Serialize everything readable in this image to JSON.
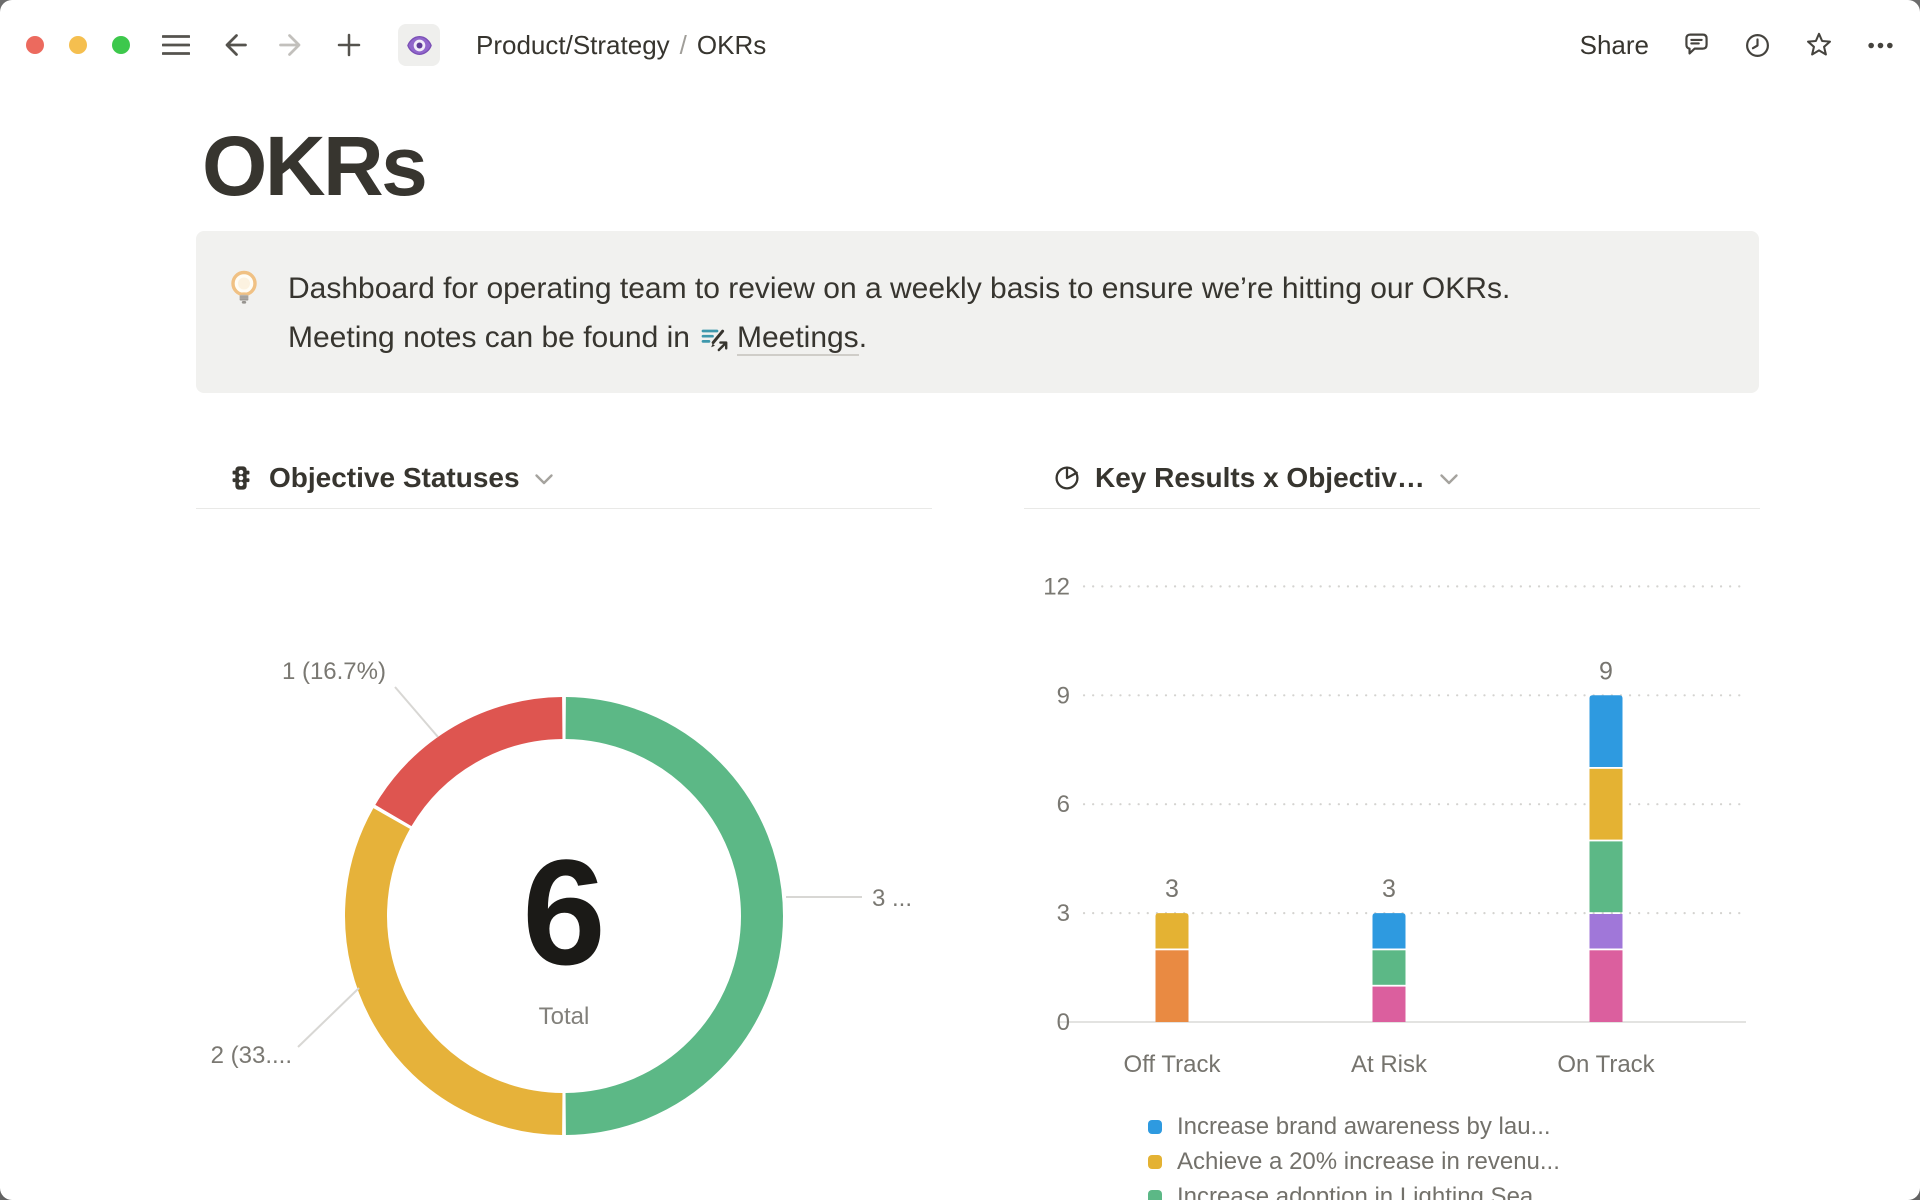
{
  "titlebar": {
    "traffic_lights": {
      "close": "#EC6A5E",
      "minimize": "#F5BF4F",
      "zoom": "#3DC84C"
    },
    "breadcrumb": {
      "page_icon": "eye-icon",
      "parent": "Product/Strategy",
      "separator": "/",
      "current": "OKRs"
    },
    "actions": {
      "share_label": "Share",
      "icons": [
        "comment-icon",
        "clock-history-icon",
        "star-icon",
        "ellipsis-icon"
      ]
    }
  },
  "page": {
    "title": "OKRs",
    "callout": {
      "icon": "lightbulb-icon",
      "line1": "Dashboard for operating team to review on a weekly basis to ensure we’re hitting our OKRs.",
      "line2_prefix": "Meeting notes can be found in",
      "link_icon": "doc-pencil-arrow-icon",
      "link_label": "Meetings",
      "line2_suffix": "."
    },
    "left_chart": {
      "icon": "traffic-light-icon",
      "title": "Objective Statuses",
      "chart_data": {
        "type": "donut",
        "total_value": "6",
        "total_label": "Total",
        "slices": [
          {
            "value": 3,
            "callout_label": "3 ...",
            "color": "#5CB886"
          },
          {
            "value": 2,
            "callout_label": "2 (33....",
            "color": "#E6B23A"
          },
          {
            "value": 1,
            "callout_label": "1 (16.7%)",
            "color": "#DE5550"
          }
        ]
      }
    },
    "right_chart": {
      "icon": "pie-chart-icon",
      "title": "Key Results x Objectiv…",
      "chart_data": {
        "type": "stacked-bar",
        "categories": [
          "Off Track",
          "At Risk",
          "On Track"
        ],
        "bar_totals": [
          3,
          3,
          9
        ],
        "y_ticks": [
          0,
          3,
          6,
          9,
          12
        ],
        "ylim": [
          0,
          12
        ],
        "grid": "dotted",
        "stacks": [
          [
            {
              "value": 2,
              "color": "#E98A42"
            },
            {
              "value": 1,
              "color": "#E4B233"
            }
          ],
          [
            {
              "value": 1,
              "color": "#DB5F9E"
            },
            {
              "value": 1,
              "color": "#5CB886"
            },
            {
              "value": 1,
              "color": "#2E9AE0"
            }
          ],
          [
            {
              "value": 2,
              "color": "#DB5F9E"
            },
            {
              "value": 1,
              "color": "#A077D9"
            },
            {
              "value": 2,
              "color": "#5CB886"
            },
            {
              "value": 2,
              "color": "#E4B233"
            },
            {
              "value": 2,
              "color": "#2E9AE0"
            }
          ]
        ],
        "legend_position": "bottom",
        "legend": [
          {
            "color": "#2E9AE0",
            "label": "Increase brand awareness by lau..."
          },
          {
            "color": "#E4B233",
            "label": "Achieve a 20% increase in revenu..."
          },
          {
            "color": "#5CB886",
            "label": "Increase adoption in Lighting Sea..."
          }
        ]
      }
    }
  }
}
